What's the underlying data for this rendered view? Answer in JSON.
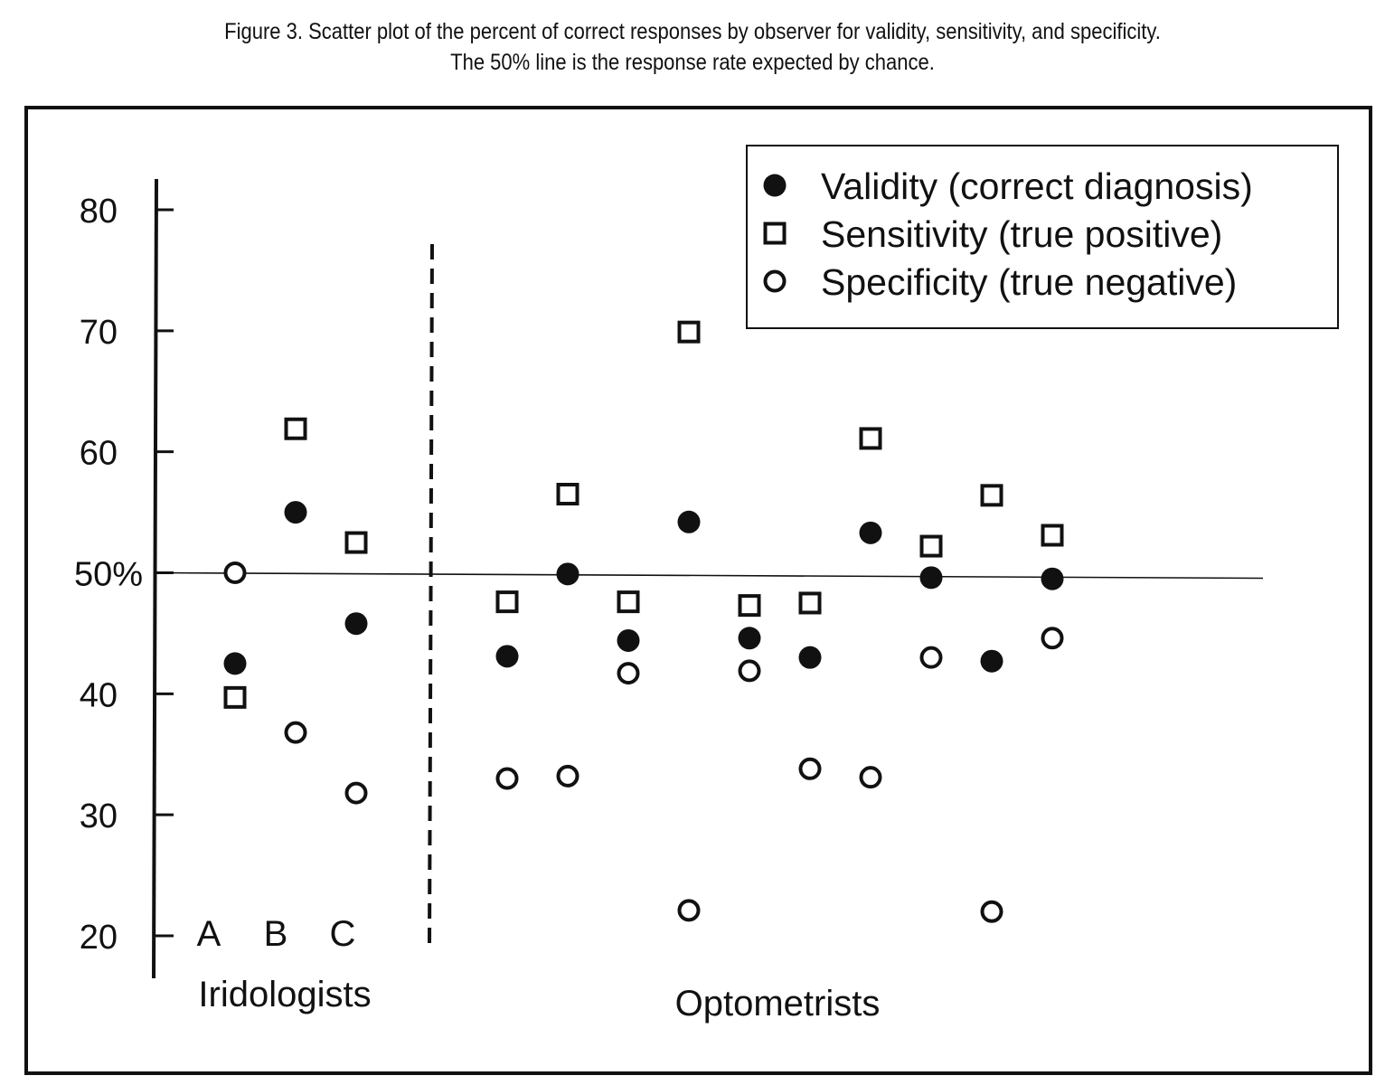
{
  "caption": {
    "line1": "Figure 3.  Scatter plot of the percent of correct responses by observer for validity, sensitivity, and specificity.",
    "line2": "The 50% line is the response rate expected by chance."
  },
  "chart_data": {
    "type": "scatter",
    "title": "Figure 3.  Scatter plot of the percent of correct responses by observer for validity, sensitivity, and specificity.",
    "subtitle": "The 50% line is the response rate expected by chance.",
    "ylim": [
      20,
      80
    ],
    "yticks": [
      20,
      30,
      40,
      50,
      60,
      70,
      80
    ],
    "ytick_labels": [
      "20",
      "30",
      "40",
      "50%",
      "60",
      "70",
      "80"
    ],
    "reference_line": 50,
    "grid": false,
    "legend_position": "top-right",
    "groups": [
      {
        "label": "Iridologists",
        "observers": [
          "A",
          "B",
          "C"
        ]
      },
      {
        "label": "Optometrists",
        "observers": [
          "",
          "",
          "",
          "",
          "",
          "",
          "",
          "",
          "",
          ""
        ]
      }
    ],
    "x": [
      1,
      2,
      3,
      4.5,
      5.5,
      6.5,
      7.5,
      8.5,
      9.5,
      10.5,
      11.5,
      12.5,
      13.5
    ],
    "series": [
      {
        "name": "Validity (correct diagnosis)",
        "marker": "filled-circle",
        "values": [
          42.5,
          55,
          45.8,
          43.1,
          49.9,
          44.4,
          54.2,
          44.6,
          43,
          53.3,
          49.6,
          42.7,
          49.5
        ]
      },
      {
        "name": "Sensitivity (true positive)",
        "marker": "open-square",
        "values": [
          39.7,
          61.9,
          52.5,
          47.6,
          56.5,
          47.6,
          69.9,
          47.3,
          47.5,
          61.1,
          52.2,
          56.4,
          53.1
        ]
      },
      {
        "name": "Specificity (true negative)",
        "marker": "open-circle",
        "values": [
          50,
          36.8,
          31.8,
          33,
          33.2,
          41.7,
          22.1,
          41.9,
          33.8,
          33.1,
          43,
          22,
          44.6
        ]
      }
    ]
  }
}
